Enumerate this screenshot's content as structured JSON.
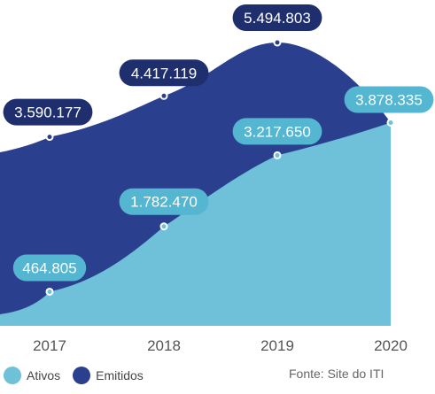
{
  "chart_data": {
    "type": "area",
    "categories": [
      "2017",
      "2018",
      "2019",
      "2020"
    ],
    "series": [
      {
        "name": "Emitidos",
        "values": [
          3590177,
          4417119,
          5494803,
          3878335
        ],
        "labels": [
          "3.590.177",
          "4.417.119",
          "5.494.803",
          "3.878.335"
        ],
        "color": "#2b3f8f"
      },
      {
        "name": "Ativos",
        "values": [
          464805,
          1782470,
          3217650,
          3878335
        ],
        "labels": [
          "464.805",
          "1.782.470",
          "3.217.650",
          "3.878.335"
        ],
        "color": "#6fc0d9"
      }
    ],
    "title": "",
    "xlabel": "",
    "ylabel": ""
  },
  "source": "Fonte: Site do ITI",
  "colors": {
    "label_emitidos_bg": "#1f2f6e",
    "label_ativos_bg": "#55b6d2",
    "axis_text": "#555555"
  }
}
